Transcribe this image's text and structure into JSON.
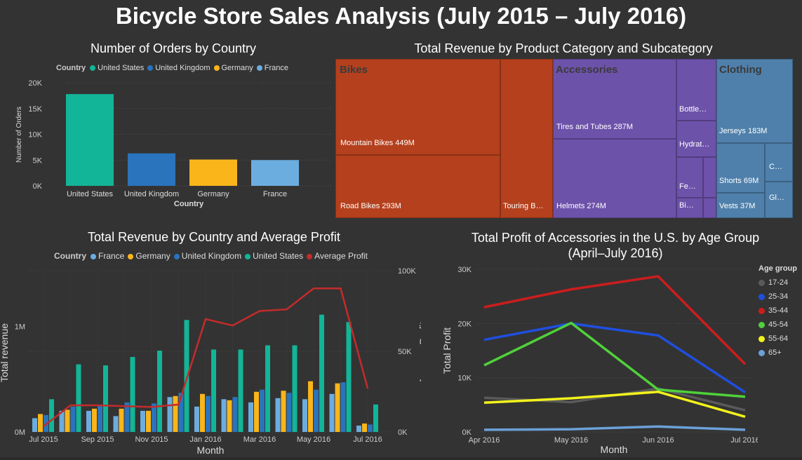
{
  "title": "Bicycle Store Sales Analysis (July 2015 – July 2016)",
  "colors": {
    "background": "#333333",
    "us": "#12b597",
    "uk": "#2a73bd",
    "germany": "#f9b51a",
    "france": "#6cade0",
    "avg_profit": "#c42b2b",
    "bikes": "#b5401d",
    "accessories": "#6d52aa",
    "clothing": "#4f80ab"
  },
  "chart_data": [
    {
      "type": "bar",
      "title": "Number of Orders by Country",
      "legend_title": "Country",
      "legend_position": "top",
      "categories": [
        "United States",
        "United Kingdom",
        "Germany",
        "France"
      ],
      "values": [
        17800,
        6300,
        5100,
        5000
      ],
      "xlabel": "Country",
      "ylabel": "Number of Orders",
      "yticks": [
        "0K",
        "5K",
        "10K",
        "15K",
        "20K"
      ],
      "ylim": [
        0,
        20000
      ],
      "grid": true
    },
    {
      "type": "treemap",
      "title": "Total Revenue by Product Category and Subcategory",
      "groups": [
        {
          "name": "Bikes",
          "items": [
            {
              "label": "Mountain Bikes 449M",
              "value": 449
            },
            {
              "label": "Road Bikes 293M",
              "value": 293
            },
            {
              "label": "Touring B…"
            }
          ]
        },
        {
          "name": "Accessories",
          "items": [
            {
              "label": "Tires and Tubes 287M",
              "value": 287
            },
            {
              "label": "Helmets 274M",
              "value": 274
            },
            {
              "label": "Bottle…"
            },
            {
              "label": "Hydrat…"
            },
            {
              "label": "Fe…"
            },
            {
              "label": "Bi…"
            }
          ]
        },
        {
          "name": "Clothing",
          "items": [
            {
              "label": "Jerseys 183M",
              "value": 183
            },
            {
              "label": "Shorts 69M",
              "value": 69
            },
            {
              "label": "Vests 37M",
              "value": 37
            },
            {
              "label": "C…"
            },
            {
              "label": "Gl…"
            }
          ]
        }
      ]
    },
    {
      "type": "bar_line_combo",
      "title": "Total Revenue by Country and Average Profit",
      "legend_title": "Country",
      "legend": [
        "France",
        "Germany",
        "United Kingdom",
        "United States",
        "Average Profit"
      ],
      "legend_position": "top",
      "xlabel": "Month",
      "ylabel": "Total revenue",
      "y2label": "Average Profit",
      "xticks": [
        "Jul 2015",
        "Sep 2015",
        "Nov 2015",
        "Jan 2016",
        "Mar 2016",
        "May 2016",
        "Jul 2016"
      ],
      "x": [
        "Jul 2015",
        "Aug 2015",
        "Sep 2015",
        "Oct 2015",
        "Nov 2015",
        "Dec 2015",
        "Jan 2016",
        "Feb 2016",
        "Mar 2016",
        "Apr 2016",
        "May 2016",
        "Jun 2016",
        "Jul 2016"
      ],
      "yticks": [
        "0M",
        "1M"
      ],
      "ylim": [
        0,
        1500000
      ],
      "y2ticks": [
        "0K",
        "50K",
        "100K"
      ],
      "y2lim": [
        0,
        100000
      ],
      "series": [
        {
          "name": "France",
          "values": [
            130000,
            200000,
            200000,
            150000,
            200000,
            330000,
            240000,
            310000,
            280000,
            320000,
            310000,
            360000,
            60000
          ]
        },
        {
          "name": "Germany",
          "values": [
            170000,
            210000,
            220000,
            220000,
            200000,
            340000,
            360000,
            300000,
            380000,
            390000,
            480000,
            460000,
            80000
          ]
        },
        {
          "name": "United Kingdom",
          "values": [
            160000,
            240000,
            250000,
            280000,
            270000,
            370000,
            340000,
            330000,
            400000,
            370000,
            400000,
            470000,
            70000
          ]
        },
        {
          "name": "United States",
          "values": [
            310000,
            640000,
            630000,
            710000,
            770000,
            1060000,
            780000,
            780000,
            820000,
            820000,
            1110000,
            1040000,
            260000
          ]
        },
        {
          "name": "Average Profit",
          "axis": "secondary",
          "values": [
            3500,
            16500,
            16500,
            16000,
            15500,
            17000,
            70000,
            66000,
            75000,
            76000,
            89000,
            89000,
            27000
          ]
        }
      ],
      "grid": true
    },
    {
      "type": "line",
      "title": "Total Profit of Accessories in the U.S. by Age Group (April–July 2016)",
      "title_lines": [
        "Total Profit of Accessories in the U.S. by Age Group",
        "(April–July 2016)"
      ],
      "legend_title": "Age group",
      "legend_position": "right",
      "x": [
        "Apr 2016",
        "May 2016",
        "Jun 2016",
        "Jul 2016"
      ],
      "xlabel": "Month",
      "ylabel": "Total Profit",
      "yticks": [
        "0K",
        "10K",
        "20K",
        "30K"
      ],
      "ylim": [
        0,
        30000
      ],
      "series": [
        {
          "name": "17-24",
          "values": [
            6300,
            5500,
            8000,
            4000
          ]
        },
        {
          "name": "25-34",
          "values": [
            17000,
            20000,
            17800,
            7300
          ]
        },
        {
          "name": "35-44",
          "values": [
            23000,
            26300,
            28700,
            12500
          ]
        },
        {
          "name": "45-54",
          "values": [
            12300,
            20100,
            7800,
            6500
          ]
        },
        {
          "name": "55-64",
          "values": [
            5400,
            6200,
            7400,
            2800
          ]
        },
        {
          "name": "65+",
          "values": [
            400,
            500,
            1000,
            400
          ]
        }
      ],
      "series_colors": [
        "#5a5a5a",
        "#1f4fe0",
        "#cc1d1d",
        "#4fd13a",
        "#f2f21c",
        "#6ca0d8"
      ],
      "grid": true
    }
  ]
}
